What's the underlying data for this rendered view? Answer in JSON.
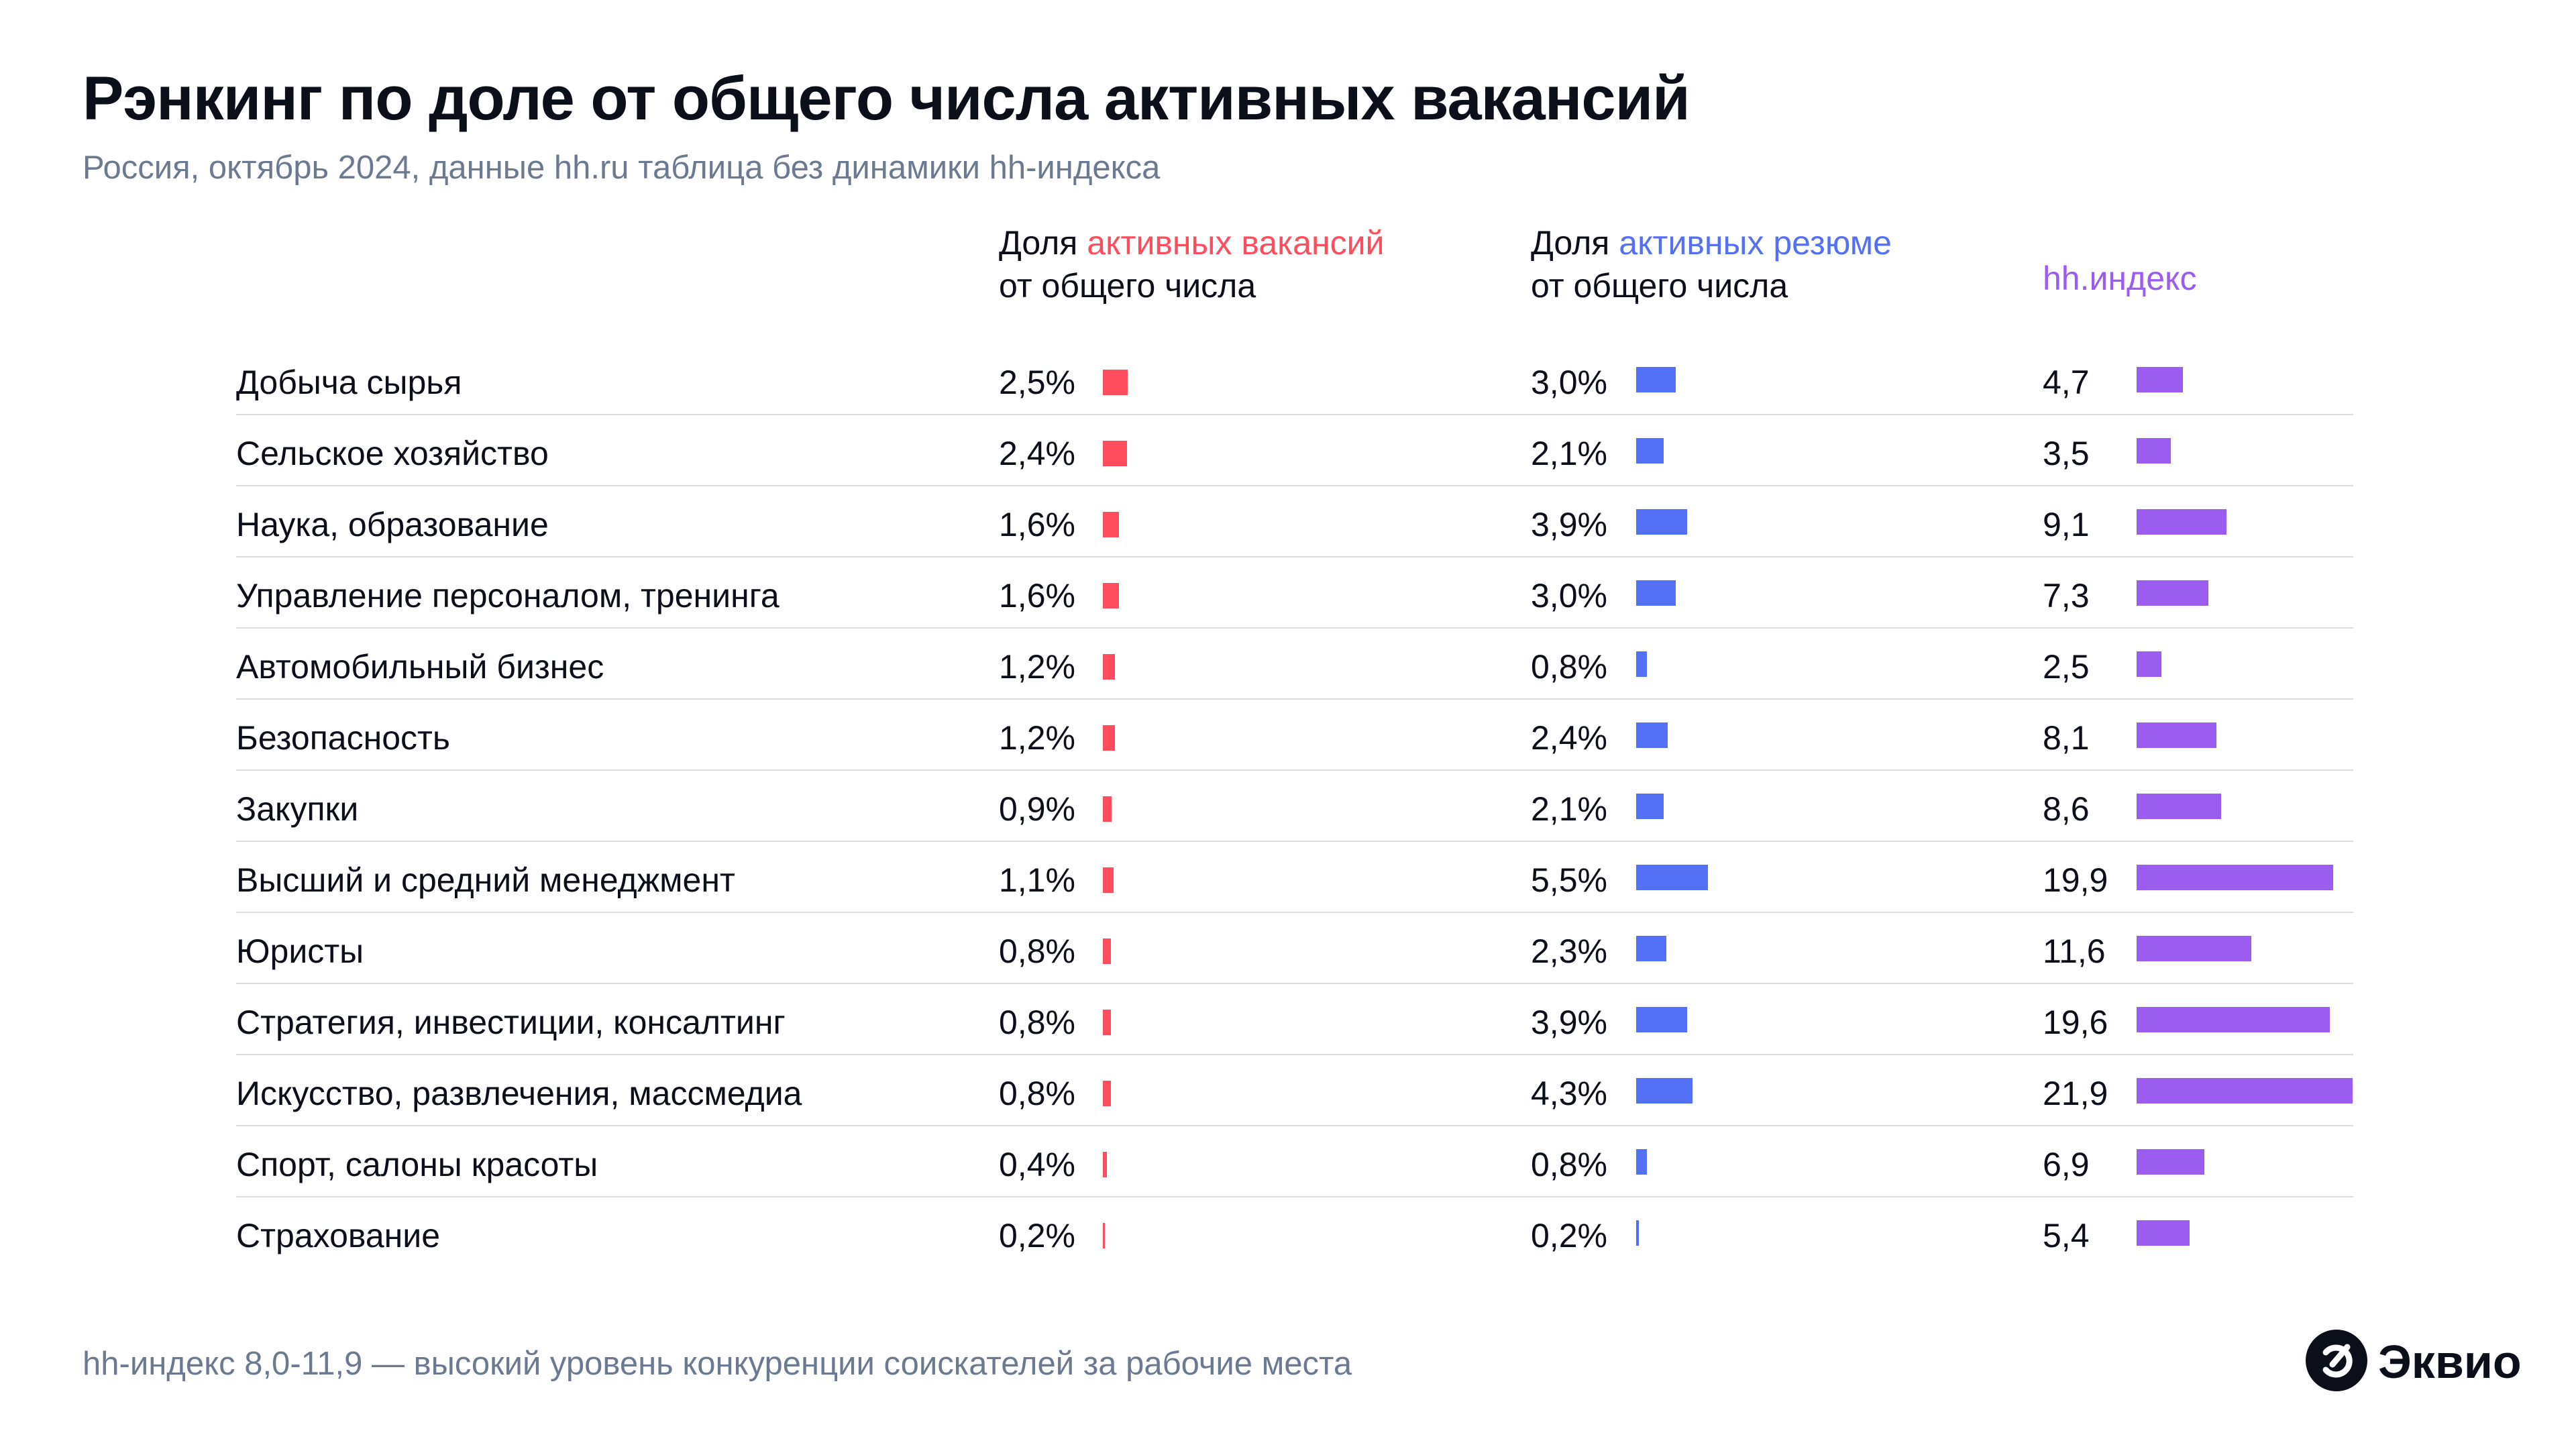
{
  "title": "Рэнкинг по доле от общего числа активных вакансий",
  "subtitle": "Россия, октябрь 2024, данные hh.ru таблица без динамики hh-индекса",
  "headers": {
    "col1": {
      "prefix": "Доля",
      "accent": "активных вакансий",
      "line2": "от общего числа"
    },
    "col2": {
      "prefix": "Доля",
      "accent": "активных резюме",
      "line2": "от общего числа"
    },
    "col3": {
      "accent": "hh.индекс"
    }
  },
  "colors": {
    "vacancies": "#ff4d5e",
    "resumes": "#5470f5",
    "hh_index": "#9b5cf0",
    "text": "#0b0f1a",
    "muted": "#6b7a90"
  },
  "chart_data": {
    "type": "table",
    "columns": [
      "Доля активных вакансий от общего числа",
      "Доля активных резюме от общего числа",
      "hh.индекс"
    ],
    "rows": [
      {
        "category": "Добыча сырья",
        "vacancies": "2,5%",
        "v": 2.5,
        "resumes": "3,0%",
        "r": 3.0,
        "hh": "4,7",
        "h": 4.7
      },
      {
        "category": "Сельское хозяйство",
        "vacancies": "2,4%",
        "v": 2.4,
        "resumes": "2,1%",
        "r": 2.1,
        "hh": "3,5",
        "h": 3.5
      },
      {
        "category": "Наука, образование",
        "vacancies": "1,6%",
        "v": 1.6,
        "resumes": "3,9%",
        "r": 3.9,
        "hh": "9,1",
        "h": 9.1
      },
      {
        "category": "Управление персоналом, тренинга",
        "vacancies": "1,6%",
        "v": 1.6,
        "resumes": "3,0%",
        "r": 3.0,
        "hh": "7,3",
        "h": 7.3
      },
      {
        "category": "Автомобильный бизнес",
        "vacancies": "1,2%",
        "v": 1.2,
        "resumes": "0,8%",
        "r": 0.8,
        "hh": "2,5",
        "h": 2.5
      },
      {
        "category": "Безопасность",
        "vacancies": "1,2%",
        "v": 1.2,
        "resumes": "2,4%",
        "r": 2.4,
        "hh": "8,1",
        "h": 8.1
      },
      {
        "category": "Закупки",
        "vacancies": "0,9%",
        "v": 0.9,
        "resumes": "2,1%",
        "r": 2.1,
        "hh": "8,6",
        "h": 8.6
      },
      {
        "category": "Высший и средний менеджмент",
        "vacancies": "1,1%",
        "v": 1.1,
        "resumes": "5,5%",
        "r": 5.5,
        "hh": "19,9",
        "h": 19.9
      },
      {
        "category": "Юристы",
        "vacancies": "0,8%",
        "v": 0.8,
        "resumes": "2,3%",
        "r": 2.3,
        "hh": "11,6",
        "h": 11.6
      },
      {
        "category": "Стратегия, инвестиции, консалтинг",
        "vacancies": "0,8%",
        "v": 0.8,
        "resumes": "3,9%",
        "r": 3.9,
        "hh": "19,6",
        "h": 19.6
      },
      {
        "category": "Искусство, развлечения, массмедиа",
        "vacancies": "0,8%",
        "v": 0.8,
        "resumes": "4,3%",
        "r": 4.3,
        "hh": "21,9",
        "h": 21.9
      },
      {
        "category": "Спорт, салоны красоты",
        "vacancies": "0,4%",
        "v": 0.4,
        "resumes": "0,8%",
        "r": 0.8,
        "hh": "6,9",
        "h": 6.9
      },
      {
        "category": "Страхование",
        "vacancies": "0,2%",
        "v": 0.2,
        "resumes": "0,2%",
        "r": 0.2,
        "hh": "5,4",
        "h": 5.4
      }
    ]
  },
  "footer": "hh-индекс 8,0-11,9 — высокий уровень конкуренции соискателей за рабочие места",
  "logo": {
    "text": "Эквио",
    "icon": "ekvio-logo-icon"
  }
}
